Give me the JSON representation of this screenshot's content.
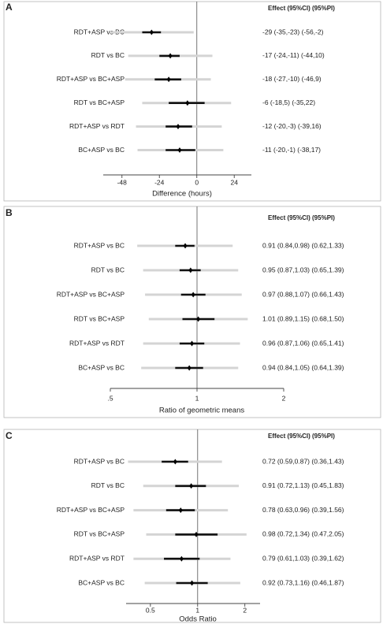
{
  "chart_data": [
    {
      "type": "forest",
      "panel_label": "A",
      "header": "Effect (95%CI) (95%PI)",
      "categories": [
        "RDT+ASP vs BC",
        "RDT vs BC",
        "RDT+ASP vs BC+ASP",
        "RDT vs BC+ASP",
        "RDT+ASP vs RDT",
        "BC+ASP vs BC"
      ],
      "values": [
        -29,
        -17,
        -18,
        -6,
        -12,
        -11
      ],
      "ci_low": [
        -35,
        -24,
        -27,
        -18,
        -20,
        -20
      ],
      "ci_high": [
        -23,
        -11,
        -10,
        5,
        -3,
        -1
      ],
      "pi_low": [
        -56,
        -44,
        -46,
        -35,
        -39,
        -38
      ],
      "pi_high": [
        -2,
        10,
        9,
        22,
        16,
        17
      ],
      "value_labels": [
        "-29 (-35,-23) (-56,-2)",
        "-17 (-24,-11) (-44,10)",
        "-18 (-27,-10) (-46,9)",
        "-6 (-18,5) (-35,22)",
        "-12 (-20,-3) (-39,16)",
        "-11 (-20,-1) (-38,17)"
      ],
      "xlabel": "Difference  (hours)",
      "xscale": "linear",
      "xlim": [
        -60,
        35
      ],
      "xticks": [
        -48,
        -24,
        0,
        24
      ],
      "reference_line": 0,
      "ci_color": "#111111",
      "pi_color": "#d4d4d4"
    },
    {
      "type": "forest",
      "panel_label": "B",
      "header": "Effect (95%CI) (95%PI)",
      "categories": [
        "RDT+ASP vs BC",
        "RDT vs BC",
        "RDT+ASP vs BC+ASP",
        "RDT vs BC+ASP",
        "RDT+ASP vs RDT",
        "BC+ASP vs BC"
      ],
      "values": [
        0.91,
        0.95,
        0.97,
        1.01,
        0.96,
        0.94
      ],
      "ci_low": [
        0.84,
        0.87,
        0.88,
        0.89,
        0.87,
        0.84
      ],
      "ci_high": [
        0.98,
        1.03,
        1.07,
        1.15,
        1.06,
        1.05
      ],
      "pi_low": [
        0.62,
        0.65,
        0.66,
        0.68,
        0.65,
        0.64
      ],
      "pi_high": [
        1.33,
        1.39,
        1.43,
        1.5,
        1.41,
        1.39
      ],
      "value_labels": [
        "0.91 (0.84,0.98) (0.62,1.33)",
        "0.95 (0.87,1.03) (0.65,1.39)",
        "0.97 (0.88,1.07) (0.66,1.43)",
        "1.01 (0.89,1.15) (0.68,1.50)",
        "0.96 (0.87,1.06) (0.65,1.41)",
        "0.94 (0.84,1.05) (0.64,1.39)"
      ],
      "xlabel": "Ratio of geometric means",
      "xscale": "log",
      "xlim": [
        0.5,
        2
      ],
      "xticks": [
        {
          "value": 0.5,
          "label": ".5"
        },
        1,
        2
      ],
      "reference_line": 1,
      "ci_color": "#111111",
      "pi_color": "#d4d4d4"
    },
    {
      "type": "forest",
      "panel_label": "C",
      "header": "Effect (95%CI) (95%PI)",
      "categories": [
        "RDT+ASP vs BC",
        "RDT vs BC",
        "RDT+ASP vs BC+ASP",
        "RDT vs BC+ASP",
        "RDT+ASP vs RDT",
        "BC+ASP vs BC"
      ],
      "values": [
        0.72,
        0.91,
        0.78,
        0.98,
        0.79,
        0.92
      ],
      "ci_low": [
        0.59,
        0.72,
        0.63,
        0.72,
        0.61,
        0.73
      ],
      "ci_high": [
        0.87,
        1.13,
        0.96,
        1.34,
        1.03,
        1.16
      ],
      "pi_low": [
        0.36,
        0.45,
        0.39,
        0.47,
        0.39,
        0.46
      ],
      "pi_high": [
        1.43,
        1.83,
        1.56,
        2.05,
        1.62,
        1.87
      ],
      "value_labels": [
        "0.72 (0.59,0.87) (0.36,1.43)",
        "0.91 (0.72,1.13) (0.45,1.83)",
        "0.78 (0.63,0.96) (0.39,1.56)",
        "0.98 (0.72,1.34) (0.47,2.05)",
        "0.79 (0.61,1.03) (0.39,1.62)",
        "0.92 (0.73,1.16) (0.46,1.87)"
      ],
      "xlabel": "Odds Ratio",
      "xscale": "log",
      "xlim": [
        0.35,
        2.5
      ],
      "xticks": [
        0.5,
        1,
        2
      ],
      "reference_line": 1,
      "ci_color": "#111111",
      "pi_color": "#d4d4d4"
    }
  ]
}
